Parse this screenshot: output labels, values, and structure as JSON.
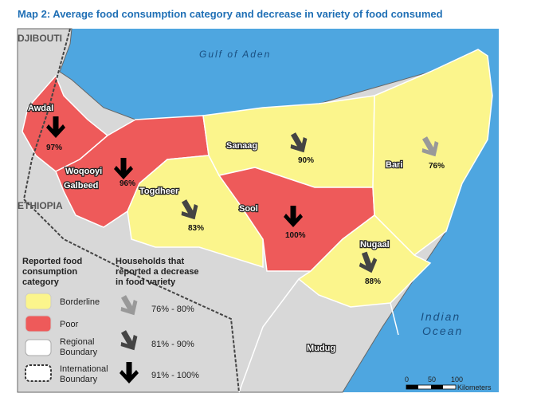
{
  "title": "Map 2: Average food consumption category and decrease in variety of food consumed",
  "countries": {
    "djibouti": "DJIBOUTI",
    "ethiopia": "ETHIOPIA"
  },
  "water": {
    "gulf": "Gulf of Aden",
    "ocean": [
      "Indian",
      "Ocean"
    ]
  },
  "regions": [
    {
      "name": [
        "Awdal"
      ],
      "decrease": "97%"
    },
    {
      "name": [
        "Woqooyi",
        "Galbeed"
      ],
      "decrease": "96%"
    },
    {
      "name": [
        "Togdheer"
      ],
      "decrease": "83%"
    },
    {
      "name": [
        "Sanaag"
      ],
      "decrease": "90%"
    },
    {
      "name": [
        "Bari"
      ],
      "decrease": "76%"
    },
    {
      "name": [
        "Sool"
      ],
      "decrease": "100%"
    },
    {
      "name": [
        "Nugaal"
      ],
      "decrease": "88%"
    },
    {
      "name": [
        "Mudug"
      ]
    }
  ],
  "legend": {
    "category_title": [
      "Reported food",
      "consumption",
      "category"
    ],
    "category_items": [
      [
        "Borderline"
      ],
      [
        "Poor"
      ],
      [
        "Regional",
        "Boundary"
      ],
      [
        "International",
        "Boundary"
      ]
    ],
    "decrease_title": [
      "Households that",
      "reported a decrease",
      "in food variety"
    ],
    "decrease_items": [
      "76% - 80%",
      "81% - 90%",
      "91% - 100%"
    ]
  },
  "scale": {
    "ticks": [
      "0",
      "50",
      "100"
    ],
    "unit": "Kilometers"
  }
}
